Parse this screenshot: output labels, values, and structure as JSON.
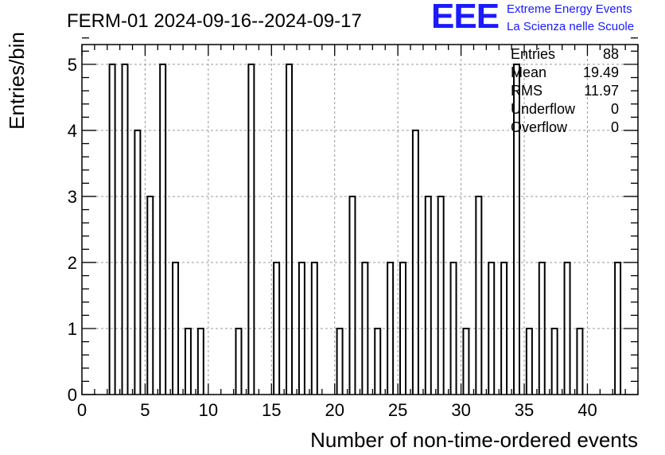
{
  "chart_data": {
    "type": "bar",
    "title": "FERM-01 2024-09-16--2024-09-17",
    "xlabel": "Number of non-time-ordered events",
    "ylabel": "Entries/bin",
    "xlim": [
      0,
      44
    ],
    "ylim": [
      0,
      5.3
    ],
    "x_ticks": [
      0,
      5,
      10,
      15,
      20,
      25,
      30,
      35,
      40
    ],
    "y_ticks": [
      0,
      1,
      2,
      3,
      4,
      5
    ],
    "grid": true,
    "bins": [
      {
        "x": 2,
        "count": 5
      },
      {
        "x": 3,
        "count": 5
      },
      {
        "x": 4,
        "count": 4
      },
      {
        "x": 5,
        "count": 3
      },
      {
        "x": 6,
        "count": 5
      },
      {
        "x": 7,
        "count": 2
      },
      {
        "x": 8,
        "count": 1
      },
      {
        "x": 9,
        "count": 1
      },
      {
        "x": 12,
        "count": 1
      },
      {
        "x": 13,
        "count": 5
      },
      {
        "x": 15,
        "count": 2
      },
      {
        "x": 16,
        "count": 5
      },
      {
        "x": 17,
        "count": 2
      },
      {
        "x": 18,
        "count": 2
      },
      {
        "x": 20,
        "count": 1
      },
      {
        "x": 21,
        "count": 3
      },
      {
        "x": 22,
        "count": 2
      },
      {
        "x": 23,
        "count": 1
      },
      {
        "x": 24,
        "count": 2
      },
      {
        "x": 25,
        "count": 2
      },
      {
        "x": 26,
        "count": 4
      },
      {
        "x": 27,
        "count": 3
      },
      {
        "x": 28,
        "count": 3
      },
      {
        "x": 29,
        "count": 2
      },
      {
        "x": 30,
        "count": 1
      },
      {
        "x": 31,
        "count": 3
      },
      {
        "x": 32,
        "count": 2
      },
      {
        "x": 33,
        "count": 2
      },
      {
        "x": 34,
        "count": 5
      },
      {
        "x": 35,
        "count": 1
      },
      {
        "x": 36,
        "count": 2
      },
      {
        "x": 37,
        "count": 1
      },
      {
        "x": 38,
        "count": 2
      },
      {
        "x": 39,
        "count": 1
      },
      {
        "x": 42,
        "count": 2
      }
    ],
    "stats": [
      {
        "label": "Entries",
        "value": "88"
      },
      {
        "label": "Mean",
        "value": "19.49"
      },
      {
        "label": "RMS",
        "value": "11.97"
      },
      {
        "label": "Underflow",
        "value": "0"
      },
      {
        "label": "Overflow",
        "value": "0"
      }
    ]
  },
  "logo": {
    "letters": "EEE",
    "line1": "Extreme Energy Events",
    "line2": "La Scienza nelle Scuole",
    "color": "#1a1aff"
  }
}
